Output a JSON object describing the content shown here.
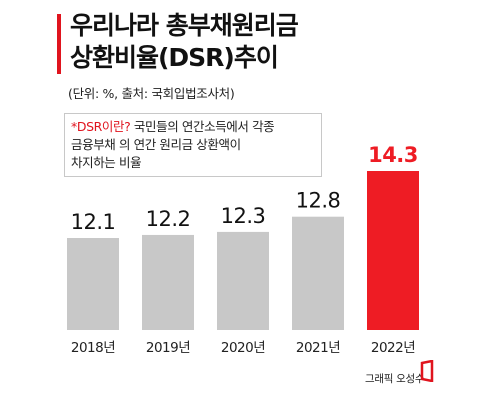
{
  "title_lines": [
    "우리나라 총부채원리금",
    "상환비율(DSR)추이"
  ],
  "subtitle": "(단위: %, 출처: 국회입법조사처)",
  "note": {
    "highlight": "*DSR이란?",
    "line1_rest": " 국민들의 연간소득에서 각종",
    "line2": "금융부채 의 연간 원리금  상환액이",
    "line3": "차지하는 비율"
  },
  "credit": "그래픽 오성수",
  "colors": {
    "accent": "#e0141e",
    "bar": "#c8c8c8",
    "highlight_bar": "#ee1c24"
  },
  "chart_data": {
    "type": "bar",
    "title": "우리나라 총부채원리금 상환비율(DSR)추이",
    "categories": [
      "2018년",
      "2019년",
      "2020년",
      "2021년",
      "2022년"
    ],
    "values": [
      12.1,
      12.2,
      12.3,
      12.8,
      14.3
    ],
    "value_labels": [
      "12.1",
      "12.2",
      "12.3",
      "12.8",
      "14.3"
    ],
    "highlight_index": 4,
    "xlabel": "",
    "ylabel": "",
    "grid": false,
    "legend": "none"
  }
}
